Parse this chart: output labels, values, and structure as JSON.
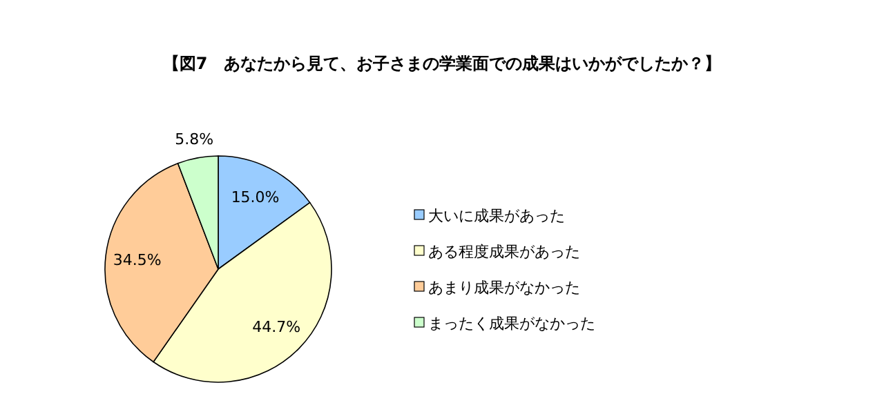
{
  "chart_data": {
    "type": "pie",
    "title": "【図7　あなたから見て、お子さまの学業面での成果はいかがでしたか？】",
    "categories": [
      "大いに成果があった",
      "ある程度成果があった",
      "あまり成果がなかった",
      "まったく成果がなかった"
    ],
    "values": [
      15.0,
      44.7,
      34.5,
      5.8
    ],
    "colors": [
      "#99ccff",
      "#ffffcc",
      "#ffcc99",
      "#ccffcc"
    ],
    "value_labels": [
      "15.0%",
      "44.7%",
      "34.5%",
      "5.8%"
    ],
    "legend": "right"
  }
}
